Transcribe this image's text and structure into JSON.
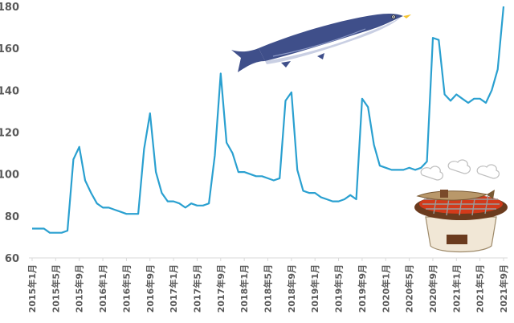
{
  "chart_data": {
    "type": "line",
    "title": "",
    "xlabel": "",
    "ylabel": "",
    "ylim": [
      60,
      180
    ],
    "yticks": [
      60,
      80,
      100,
      120,
      140,
      160,
      180
    ],
    "grid": false,
    "legend": "none",
    "line_color": "#2aa0d0",
    "x_tick_labels": [
      "2015年1月",
      "2015年5月",
      "2015年9月",
      "2016年1月",
      "2016年5月",
      "2016年9月",
      "2017年1月",
      "2017年5月",
      "2017年9月",
      "2018年1月",
      "2018年5月",
      "2018年9月",
      "2019年1月",
      "2019年5月",
      "2019年9月",
      "2020年1月",
      "2020年5月",
      "2020年9月",
      "2021年1月",
      "2021年5月",
      "2021年9月"
    ],
    "x": [
      "2015-01",
      "2015-02",
      "2015-03",
      "2015-04",
      "2015-05",
      "2015-06",
      "2015-07",
      "2015-08",
      "2015-09",
      "2015-10",
      "2015-11",
      "2015-12",
      "2016-01",
      "2016-02",
      "2016-03",
      "2016-04",
      "2016-05",
      "2016-06",
      "2016-07",
      "2016-08",
      "2016-09",
      "2016-10",
      "2016-11",
      "2016-12",
      "2017-01",
      "2017-02",
      "2017-03",
      "2017-04",
      "2017-05",
      "2017-06",
      "2017-07",
      "2017-08",
      "2017-09",
      "2017-10",
      "2017-11",
      "2017-12",
      "2018-01",
      "2018-02",
      "2018-03",
      "2018-04",
      "2018-05",
      "2018-06",
      "2018-07",
      "2018-08",
      "2018-09",
      "2018-10",
      "2018-11",
      "2018-12",
      "2019-01",
      "2019-02",
      "2019-03",
      "2019-04",
      "2019-05",
      "2019-06",
      "2019-07",
      "2019-08",
      "2019-09",
      "2019-10",
      "2019-11",
      "2019-12",
      "2020-01",
      "2020-02",
      "2020-03",
      "2020-04",
      "2020-05",
      "2020-06",
      "2020-07",
      "2020-08",
      "2020-09",
      "2020-10",
      "2020-11",
      "2020-12",
      "2021-01",
      "2021-02",
      "2021-03",
      "2021-04",
      "2021-05",
      "2021-06",
      "2021-07",
      "2021-08",
      "2021-09"
    ],
    "series": [
      {
        "values": [
          74,
          74,
          74,
          72,
          72,
          72,
          73,
          107,
          113,
          97,
          91,
          86,
          84,
          84,
          83,
          82,
          81,
          81,
          81,
          112,
          129,
          101,
          91,
          87,
          87,
          86,
          84,
          86,
          85,
          85,
          86,
          109,
          148,
          115,
          110,
          101,
          101,
          100,
          99,
          99,
          98,
          97,
          98,
          135,
          139,
          102,
          92,
          91,
          91,
          89,
          88,
          87,
          87,
          88,
          90,
          88,
          136,
          132,
          114,
          104,
          103,
          102,
          102,
          102,
          103,
          102,
          103,
          106,
          165,
          164,
          138,
          135,
          138,
          136,
          134,
          136,
          136,
          134,
          140,
          150,
          180
        ]
      }
    ]
  },
  "decorations": {
    "fish": "sanma-fish-illustration",
    "grill": "shichirin-grill-illustration"
  }
}
